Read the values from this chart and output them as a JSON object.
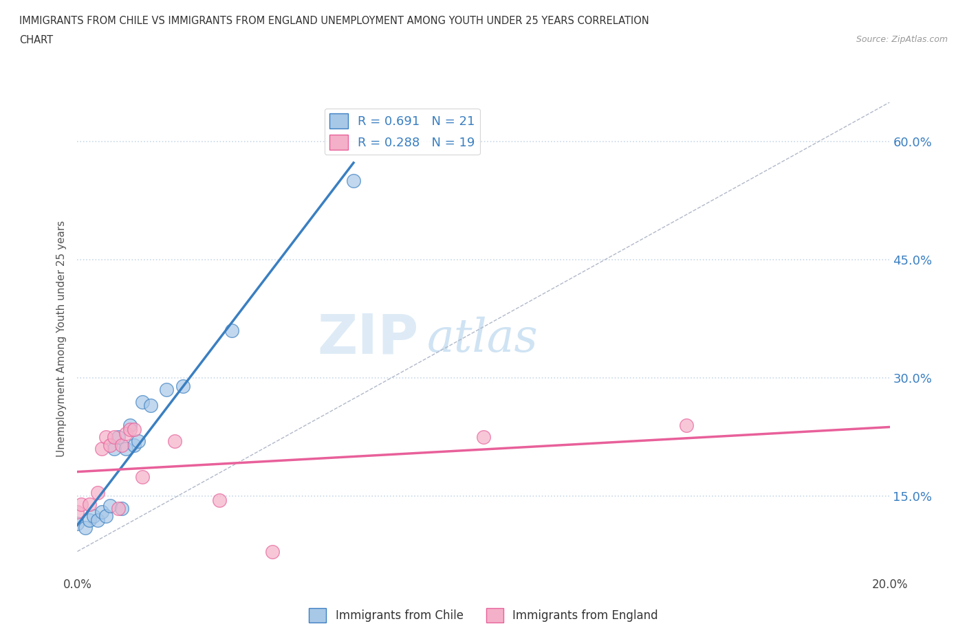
{
  "title_line1": "IMMIGRANTS FROM CHILE VS IMMIGRANTS FROM ENGLAND UNEMPLOYMENT AMONG YOUTH UNDER 25 YEARS CORRELATION",
  "title_line2": "CHART",
  "source": "Source: ZipAtlas.com",
  "ylabel": "Unemployment Among Youth under 25 years",
  "xlim": [
    0.0,
    0.2
  ],
  "ylim": [
    0.05,
    0.65
  ],
  "yticks": [
    0.15,
    0.3,
    0.45,
    0.6
  ],
  "ytick_labels": [
    "15.0%",
    "30.0%",
    "45.0%",
    "60.0%"
  ],
  "xticks": [
    0.0,
    0.05,
    0.1,
    0.15,
    0.2
  ],
  "xtick_labels": [
    "0.0%",
    "",
    "",
    "",
    "20.0%"
  ],
  "chile_R": 0.691,
  "chile_N": 21,
  "england_R": 0.288,
  "england_N": 19,
  "chile_color": "#a8c8e8",
  "england_color": "#f4b0c8",
  "chile_line_color": "#3a7fc1",
  "england_line_color": "#e8609a",
  "diagonal_color": "#b0b8c8",
  "watermark_zip": "ZIP",
  "watermark_atlas": "atlas",
  "chile_x": [
    0.0,
    0.002,
    0.003,
    0.004,
    0.005,
    0.006,
    0.007,
    0.008,
    0.009,
    0.01,
    0.011,
    0.012,
    0.013,
    0.014,
    0.015,
    0.016,
    0.018,
    0.022,
    0.026,
    0.038,
    0.068
  ],
  "chile_y": [
    0.115,
    0.11,
    0.12,
    0.125,
    0.12,
    0.13,
    0.125,
    0.138,
    0.21,
    0.225,
    0.135,
    0.21,
    0.24,
    0.215,
    0.22,
    0.27,
    0.265,
    0.285,
    0.29,
    0.36,
    0.55
  ],
  "england_x": [
    0.0,
    0.001,
    0.003,
    0.005,
    0.006,
    0.007,
    0.008,
    0.009,
    0.01,
    0.011,
    0.012,
    0.013,
    0.014,
    0.016,
    0.024,
    0.035,
    0.048,
    0.1,
    0.15
  ],
  "england_y": [
    0.13,
    0.14,
    0.14,
    0.155,
    0.21,
    0.225,
    0.215,
    0.225,
    0.135,
    0.215,
    0.23,
    0.235,
    0.235,
    0.175,
    0.22,
    0.145,
    0.08,
    0.225,
    0.24
  ],
  "background_color": "#ffffff",
  "grid_color": "#c8d8e8"
}
